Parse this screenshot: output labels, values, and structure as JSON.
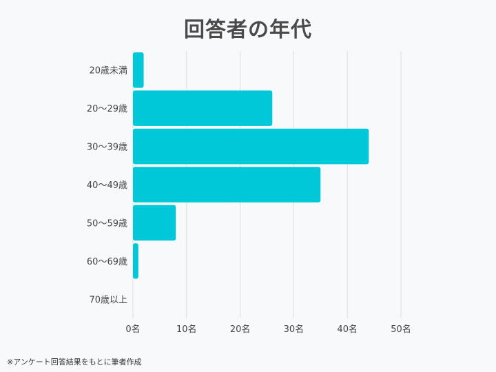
{
  "chart_data": {
    "type": "bar",
    "orientation": "horizontal",
    "title": "回答者の年代",
    "categories": [
      "20歳未満",
      "20～29歳",
      "30～39歳",
      "40～49歳",
      "50～59歳",
      "60～69歳",
      "70歳以上"
    ],
    "values": [
      2,
      26,
      44,
      35,
      8,
      1,
      0
    ],
    "xlim": [
      0,
      50
    ],
    "xticks": [
      0,
      10,
      20,
      30,
      40,
      50
    ],
    "tick_suffix": "名",
    "grid": true,
    "bar_color": "#00c8d8",
    "grid_color": "#dadde2"
  },
  "footnote": "※アンケート回答結果をもとに筆者作成"
}
